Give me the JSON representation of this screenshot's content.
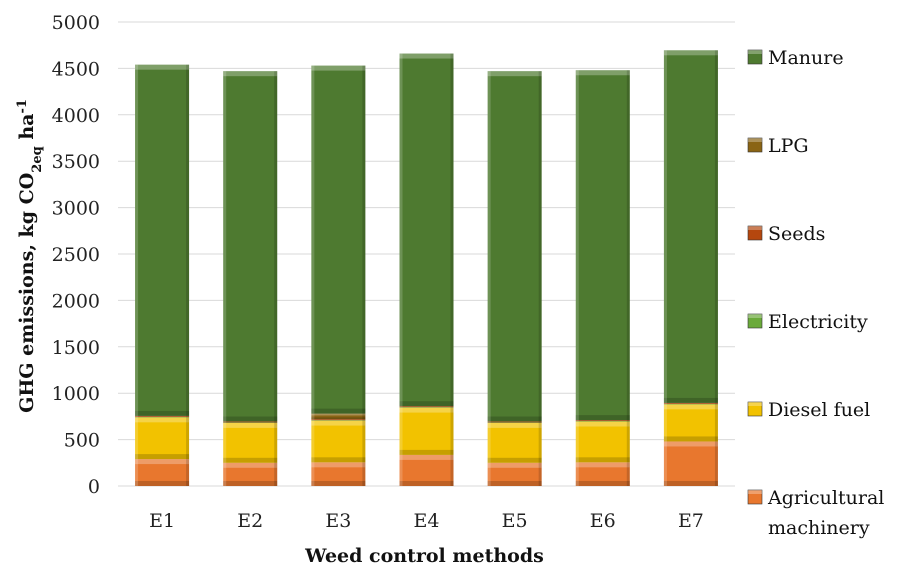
{
  "chart_data": {
    "type": "bar",
    "stacked": true,
    "title": "",
    "xlabel": "Weed control methods",
    "ylabel": {
      "parts": [
        "GHG emissions, kg CO",
        "2eq",
        " ha",
        "-1"
      ],
      "full": "GHG emissions, kg CO2eq ha-1"
    },
    "ylim": [
      0,
      5000
    ],
    "yticks": [
      0,
      500,
      1000,
      1500,
      2000,
      2500,
      3000,
      3500,
      4000,
      4500,
      5000
    ],
    "grid": true,
    "legend_position": "right",
    "categories": [
      "E1",
      "E2",
      "E3",
      "E4",
      "E5",
      "E6",
      "E7"
    ],
    "series": [
      {
        "name": "Agricultural machinery",
        "label_lines": [
          "Agricultural",
          "machinery"
        ],
        "color": "#e8772e",
        "values": [
          290,
          250,
          255,
          335,
          250,
          255,
          480
        ]
      },
      {
        "name": "Diesel fuel",
        "label_lines": [
          "Diesel fuel"
        ],
        "color": "#f2c200",
        "values": [
          450,
          430,
          450,
          510,
          430,
          440,
          400
        ]
      },
      {
        "name": "Electricity",
        "label_lines": [
          "Electricity"
        ],
        "color": "#6aaa3a",
        "values": [
          5,
          5,
          5,
          5,
          5,
          5,
          5
        ]
      },
      {
        "name": "Seeds",
        "label_lines": [
          "Seeds"
        ],
        "color": "#b5470e",
        "values": [
          10,
          10,
          10,
          10,
          10,
          10,
          10
        ]
      },
      {
        "name": "LPG",
        "label_lines": [
          "LPG"
        ],
        "color": "#8a6414",
        "values": [
          0,
          0,
          60,
          0,
          0,
          0,
          0
        ]
      },
      {
        "name": "Manure",
        "label_lines": [
          "Manure"
        ],
        "color": "#4e7a30",
        "values": [
          3785,
          3775,
          3750,
          3800,
          3775,
          3770,
          3800
        ]
      }
    ]
  }
}
